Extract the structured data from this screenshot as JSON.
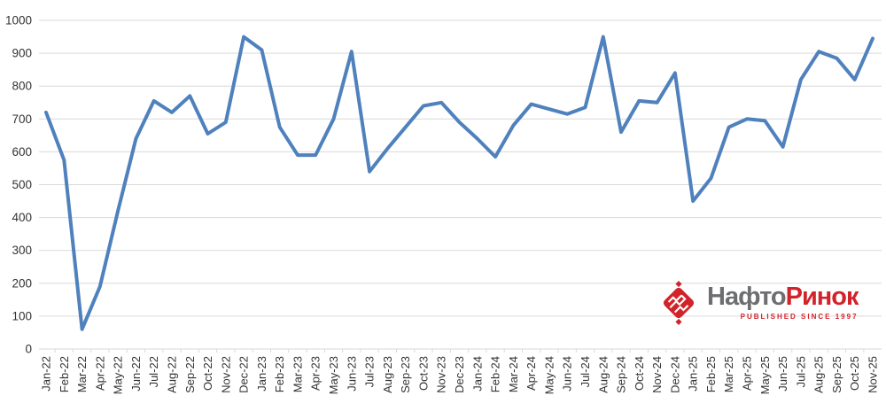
{
  "chart_data": {
    "type": "line",
    "title": "",
    "xlabel": "",
    "ylabel": "",
    "categories": [
      "Jan-22",
      "Feb-22",
      "Mar-22",
      "Apr-22",
      "May-22",
      "Jun-22",
      "Jul-22",
      "Aug-22",
      "Sep-22",
      "Oct-22",
      "Nov-22",
      "Dec-22",
      "Jan-23",
      "Feb-23",
      "Mar-23",
      "Apr-23",
      "May-23",
      "Jun-23",
      "Jul-23",
      "Aug-23",
      "Sep-23",
      "Oct-23",
      "Nov-23",
      "Dec-23",
      "Jan-24",
      "Feb-24",
      "Mar-24",
      "Apr-24",
      "May-24",
      "Jun-24",
      "Jul-24",
      "Aug-24",
      "Sep-24",
      "Oct-24",
      "Nov-24",
      "Dec-24",
      "Jan-25",
      "Feb-25",
      "Mar-25",
      "Apr-25",
      "May-25",
      "Jun-25",
      "Jul-25",
      "Aug-25",
      "Sep-25",
      "Oct-25",
      "Nov-25"
    ],
    "values": [
      720,
      575,
      60,
      190,
      420,
      640,
      755,
      720,
      770,
      655,
      690,
      950,
      910,
      675,
      590,
      590,
      700,
      905,
      540,
      610,
      675,
      740,
      750,
      690,
      640,
      585,
      680,
      745,
      730,
      715,
      735,
      950,
      660,
      755,
      750,
      840,
      450,
      520,
      675,
      700,
      695,
      615,
      820,
      905,
      885,
      820,
      945
    ],
    "ylim": [
      0,
      1000
    ],
    "ytick_step": 100,
    "grid": "on",
    "legend": "none",
    "line_color": "#4f81bd",
    "grid_color": "#d9d9d9",
    "tick_label_color": "#333333"
  },
  "logo": {
    "brand_gray": "Нафто",
    "brand_red": "Ринок",
    "tagline": "PUBLISHED SINCE 1997",
    "brand_gray_color": "#6d6e71",
    "brand_red_color": "#d2232a",
    "emblem_icon": "naftorynok-diamond-emblem"
  }
}
